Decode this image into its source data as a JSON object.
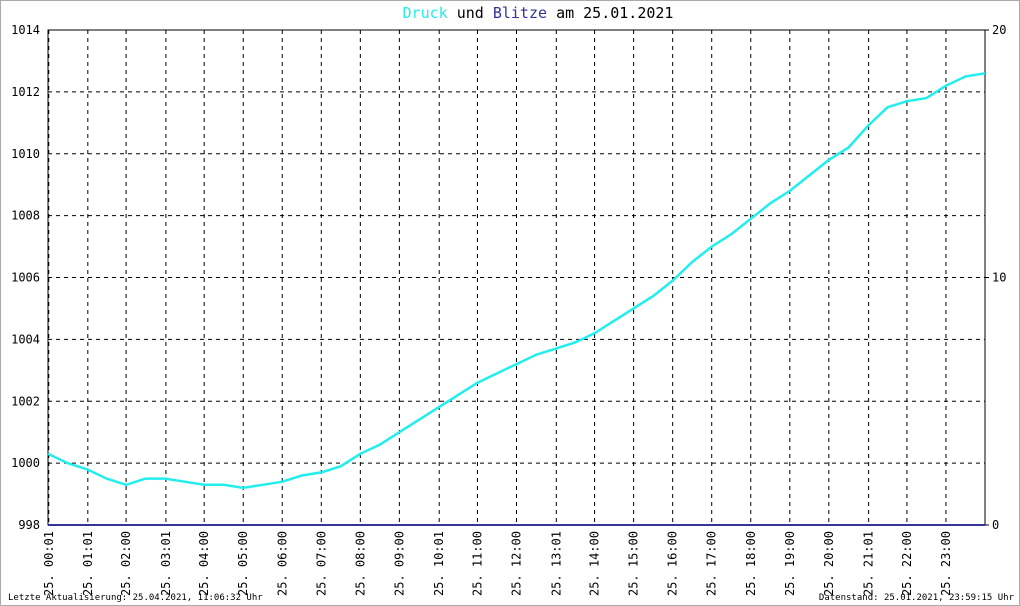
{
  "chart_data": {
    "type": "line",
    "title_connector": "und",
    "title_suffix": "am 25.01.2021",
    "xlim": [
      0,
      24
    ],
    "xticks": [
      {
        "value": 0.02,
        "label": "25. 00:01"
      },
      {
        "value": 1.02,
        "label": "25. 01:01"
      },
      {
        "value": 2,
        "label": "25. 02:00"
      },
      {
        "value": 3.02,
        "label": "25. 03:01"
      },
      {
        "value": 4,
        "label": "25. 04:00"
      },
      {
        "value": 5,
        "label": "25. 05:00"
      },
      {
        "value": 6,
        "label": "25. 06:00"
      },
      {
        "value": 7,
        "label": "25. 07:00"
      },
      {
        "value": 8,
        "label": "25. 08:00"
      },
      {
        "value": 9,
        "label": "25. 09:00"
      },
      {
        "value": 10.02,
        "label": "25. 10:01"
      },
      {
        "value": 11,
        "label": "25. 11:00"
      },
      {
        "value": 12,
        "label": "25. 12:00"
      },
      {
        "value": 13.02,
        "label": "25. 13:01"
      },
      {
        "value": 14,
        "label": "25. 14:00"
      },
      {
        "value": 15,
        "label": "25. 15:00"
      },
      {
        "value": 16,
        "label": "25. 16:00"
      },
      {
        "value": 17,
        "label": "25. 17:00"
      },
      {
        "value": 18,
        "label": "25. 18:00"
      },
      {
        "value": 19,
        "label": "25. 19:00"
      },
      {
        "value": 20,
        "label": "25. 20:00"
      },
      {
        "value": 21.02,
        "label": "25. 21:01"
      },
      {
        "value": 22,
        "label": "25. 22:00"
      },
      {
        "value": 23,
        "label": "25. 23:00"
      }
    ],
    "ylim": [
      998,
      1014
    ],
    "yticks": [
      998,
      1000,
      1002,
      1004,
      1006,
      1008,
      1010,
      1012,
      1014
    ],
    "y2lim": [
      0,
      20
    ],
    "y2ticks": [
      0,
      10,
      20
    ],
    "grid": true,
    "series": [
      {
        "name": "Druck",
        "color": "#22eeee",
        "x": [
          0,
          0.5,
          1,
          1.5,
          2,
          2.5,
          3,
          3.5,
          4,
          4.5,
          5,
          5.5,
          6,
          6.5,
          7,
          7.5,
          8,
          8.5,
          9,
          9.5,
          10,
          10.5,
          11,
          11.5,
          12,
          12.5,
          13,
          13.5,
          14,
          14.5,
          15,
          15.5,
          16,
          16.5,
          17,
          17.5,
          18,
          18.5,
          19,
          19.5,
          20,
          20.5,
          21,
          21.5,
          22,
          22.5,
          23,
          23.5,
          24
        ],
        "values": [
          1000.3,
          1000.0,
          999.8,
          999.5,
          999.3,
          999.5,
          999.5,
          999.4,
          999.3,
          999.3,
          999.2,
          999.3,
          999.4,
          999.6,
          999.7,
          999.9,
          1000.3,
          1000.6,
          1001.0,
          1001.4,
          1001.8,
          1002.2,
          1002.6,
          1002.9,
          1003.2,
          1003.5,
          1003.7,
          1003.9,
          1004.2,
          1004.6,
          1005.0,
          1005.4,
          1005.9,
          1006.5,
          1007.0,
          1007.4,
          1007.9,
          1008.4,
          1008.8,
          1009.3,
          1009.8,
          1010.2,
          1010.9,
          1011.5,
          1011.7,
          1011.8,
          1012.2,
          1012.5,
          1012.6
        ]
      },
      {
        "name": "Blitze",
        "color": "#333399",
        "axis": "y2",
        "x": [
          0,
          24
        ],
        "values": [
          0,
          0
        ]
      }
    ],
    "footer_left": "Letzte Aktualisierung: 25.04.2021, 11:06:32 Uhr",
    "footer_right": "Datenstand: 25.01.2021, 23:59:15 Uhr"
  }
}
